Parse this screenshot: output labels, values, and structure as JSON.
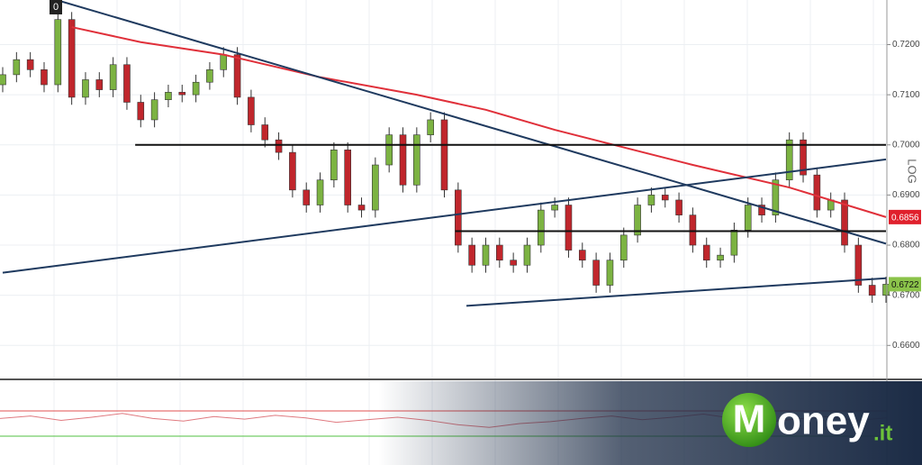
{
  "chart_data": {
    "type": "candlestick",
    "log_scale": true,
    "scale_label": "LOG",
    "marker_label": "0",
    "grid": true,
    "up_color": "#7cb342",
    "down_color": "#c0262c",
    "ylim": [
      0.6534,
      0.7289
    ],
    "yticks": [
      {
        "value": 0.66,
        "label": "0.6600"
      },
      {
        "value": 0.67,
        "label": "0.6700"
      },
      {
        "value": 0.68,
        "label": "0.6800"
      },
      {
        "value": 0.69,
        "label": "0.6900"
      },
      {
        "value": 0.7,
        "label": "0.7000"
      },
      {
        "value": 0.71,
        "label": "0.7100"
      },
      {
        "value": 0.72,
        "label": "0.7200"
      }
    ],
    "open": [
      0.712,
      0.714,
      0.717,
      0.715,
      0.712,
      0.725,
      0.7095,
      0.713,
      0.711,
      0.716,
      0.7085,
      0.705,
      0.709,
      0.7105,
      0.71,
      0.7125,
      0.715,
      0.718,
      0.7095,
      0.704,
      0.701,
      0.6985,
      0.691,
      0.688,
      0.693,
      0.699,
      0.688,
      0.687,
      0.696,
      0.702,
      0.692,
      0.702,
      0.705,
      0.691,
      0.68,
      0.676,
      0.68,
      0.677,
      0.676,
      0.68,
      0.687,
      0.688,
      0.679,
      0.677,
      0.672,
      0.677,
      0.682,
      0.688,
      0.69,
      0.689,
      0.686,
      0.68,
      0.677,
      0.678,
      0.683,
      0.688,
      0.686,
      0.693,
      0.701,
      0.694,
      0.687,
      0.689,
      0.68,
      0.672,
      0.67
    ],
    "high": [
      0.7155,
      0.7185,
      0.7185,
      0.7165,
      0.7265,
      0.7265,
      0.7145,
      0.7145,
      0.7175,
      0.7175,
      0.71,
      0.7105,
      0.712,
      0.712,
      0.714,
      0.7165,
      0.7195,
      0.7195,
      0.711,
      0.7055,
      0.7025,
      0.7,
      0.6925,
      0.6945,
      0.7005,
      0.7005,
      0.6895,
      0.6975,
      0.7035,
      0.7035,
      0.7035,
      0.7065,
      0.7065,
      0.6925,
      0.6815,
      0.6815,
      0.6815,
      0.6785,
      0.6815,
      0.6885,
      0.6895,
      0.6895,
      0.6805,
      0.6785,
      0.6785,
      0.6835,
      0.6895,
      0.6915,
      0.6915,
      0.6905,
      0.6875,
      0.6815,
      0.6795,
      0.6845,
      0.6895,
      0.6895,
      0.6945,
      0.7025,
      0.7025,
      0.6955,
      0.6905,
      0.6905,
      0.6815,
      0.6735,
      0.6737
    ],
    "low": [
      0.7105,
      0.7125,
      0.7135,
      0.7105,
      0.7105,
      0.708,
      0.708,
      0.7095,
      0.7095,
      0.707,
      0.7035,
      0.7035,
      0.7075,
      0.7085,
      0.7085,
      0.711,
      0.7135,
      0.708,
      0.7025,
      0.6995,
      0.697,
      0.6895,
      0.6865,
      0.6865,
      0.6915,
      0.6865,
      0.6855,
      0.6855,
      0.6945,
      0.6905,
      0.6905,
      0.7005,
      0.6895,
      0.6785,
      0.6745,
      0.6745,
      0.6755,
      0.6745,
      0.6745,
      0.6785,
      0.6855,
      0.6775,
      0.6755,
      0.6705,
      0.6705,
      0.6755,
      0.6805,
      0.6865,
      0.6875,
      0.6845,
      0.6785,
      0.6755,
      0.6755,
      0.6765,
      0.6815,
      0.6845,
      0.6845,
      0.6915,
      0.6925,
      0.6855,
      0.6855,
      0.6785,
      0.6705,
      0.6685,
      0.6685
    ],
    "close": [
      0.714,
      0.717,
      0.715,
      0.712,
      0.725,
      0.7095,
      0.713,
      0.711,
      0.716,
      0.7085,
      0.705,
      0.709,
      0.7105,
      0.71,
      0.7125,
      0.715,
      0.718,
      0.7095,
      0.704,
      0.701,
      0.6985,
      0.691,
      0.688,
      0.693,
      0.699,
      0.688,
      0.687,
      0.696,
      0.702,
      0.692,
      0.702,
      0.705,
      0.691,
      0.68,
      0.676,
      0.68,
      0.677,
      0.676,
      0.68,
      0.687,
      0.688,
      0.679,
      0.677,
      0.672,
      0.677,
      0.682,
      0.688,
      0.69,
      0.689,
      0.686,
      0.68,
      0.677,
      0.678,
      0.683,
      0.688,
      0.686,
      0.693,
      0.701,
      0.694,
      0.687,
      0.689,
      0.68,
      0.672,
      0.67,
      0.6722
    ],
    "moving_average": {
      "color": "#e0303a",
      "x": [
        5,
        10,
        16,
        23,
        30,
        35,
        40,
        45,
        50,
        57,
        64
      ],
      "values": [
        0.7235,
        0.7205,
        0.718,
        0.7135,
        0.71,
        0.707,
        0.703,
        0.6995,
        0.696,
        0.6915,
        0.6856
      ]
    },
    "lines": [
      {
        "color": "#1f3a5f",
        "x": [
          3.9,
          64
        ],
        "values": [
          0.7289,
          0.6803
        ]
      },
      {
        "color": "#1f3a5f",
        "x": [
          0,
          64
        ],
        "values": [
          0.6745,
          0.6971
        ]
      },
      {
        "color": "#1f3a5f",
        "x": [
          33.6,
          64
        ],
        "values": [
          0.6679,
          0.6734
        ]
      },
      {
        "color": "#111111",
        "x": [
          9.6,
          64
        ],
        "values": [
          0.7,
          0.7
        ]
      },
      {
        "color": "#111111",
        "x": [
          32.8,
          64
        ],
        "values": [
          0.6828,
          0.6828
        ]
      }
    ],
    "price_labels": [
      {
        "value": 0.6856,
        "label": "0.6856",
        "color": "#e0202c"
      },
      {
        "value": 0.6722,
        "label": "0.6722",
        "color": "#8bc34a"
      }
    ],
    "oscillator": {
      "ylim": [
        0,
        100
      ],
      "color": "#e07a80",
      "levels": [
        {
          "value": 70,
          "color": "#e05050"
        },
        {
          "value": 30,
          "color": "#50c040"
        }
      ],
      "values": [
        58,
        62,
        55,
        60,
        66,
        58,
        54,
        61,
        57,
        63,
        59,
        52,
        56,
        60,
        55,
        48,
        44,
        50,
        53,
        58,
        62,
        56,
        60,
        65,
        58,
        52,
        57,
        61,
        55,
        59
      ]
    },
    "logo": {
      "initial": "M",
      "rest": "oney",
      "suffix": ".it"
    }
  }
}
